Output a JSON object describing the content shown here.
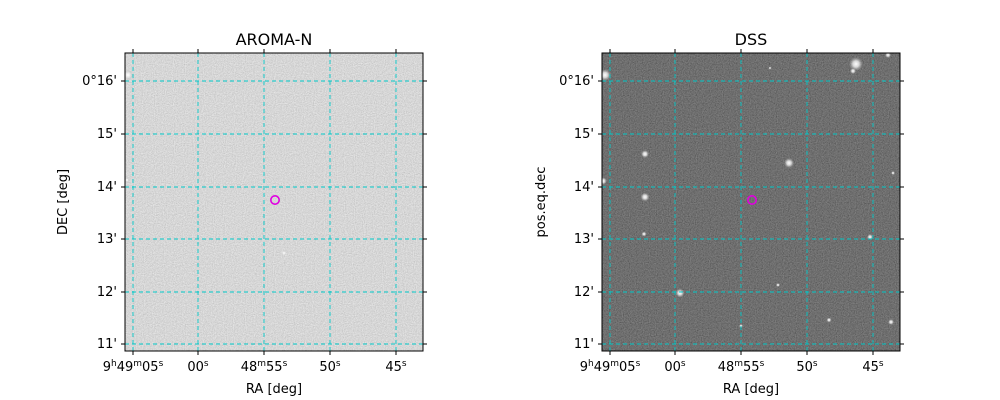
{
  "figure": {
    "panels": [
      {
        "id": "aroma",
        "title": "AROMA-N",
        "xlabel": "RA [deg]",
        "ylabel": "DEC [deg]",
        "image_style": "gray-noise-with-black-corners"
      },
      {
        "id": "dss",
        "title": "DSS",
        "xlabel": "RA [deg]",
        "ylabel": "pos.eq.dec",
        "image_style": "dark-starfield"
      }
    ],
    "ra_ticks": [
      {
        "h": "9",
        "m": "49",
        "s": "05",
        "show_hm": true
      },
      {
        "s": "00"
      },
      {
        "h": "",
        "m": "48",
        "s": "55",
        "show_m": true
      },
      {
        "s": "50"
      },
      {
        "s": "45"
      }
    ],
    "ra_units": {
      "h": "h",
      "m": "m",
      "s": "s"
    },
    "dec_ticks": [
      "0°16'",
      "15'",
      "14'",
      "13'",
      "12'",
      "11'"
    ],
    "marker": {
      "shape": "circle",
      "color": "#e000e0"
    },
    "colors": {
      "grid": "#00c8c8",
      "marker": "#e000e0",
      "aroma_bg": "#a8a8a8",
      "dss_bg": "#1e1e1e"
    }
  }
}
